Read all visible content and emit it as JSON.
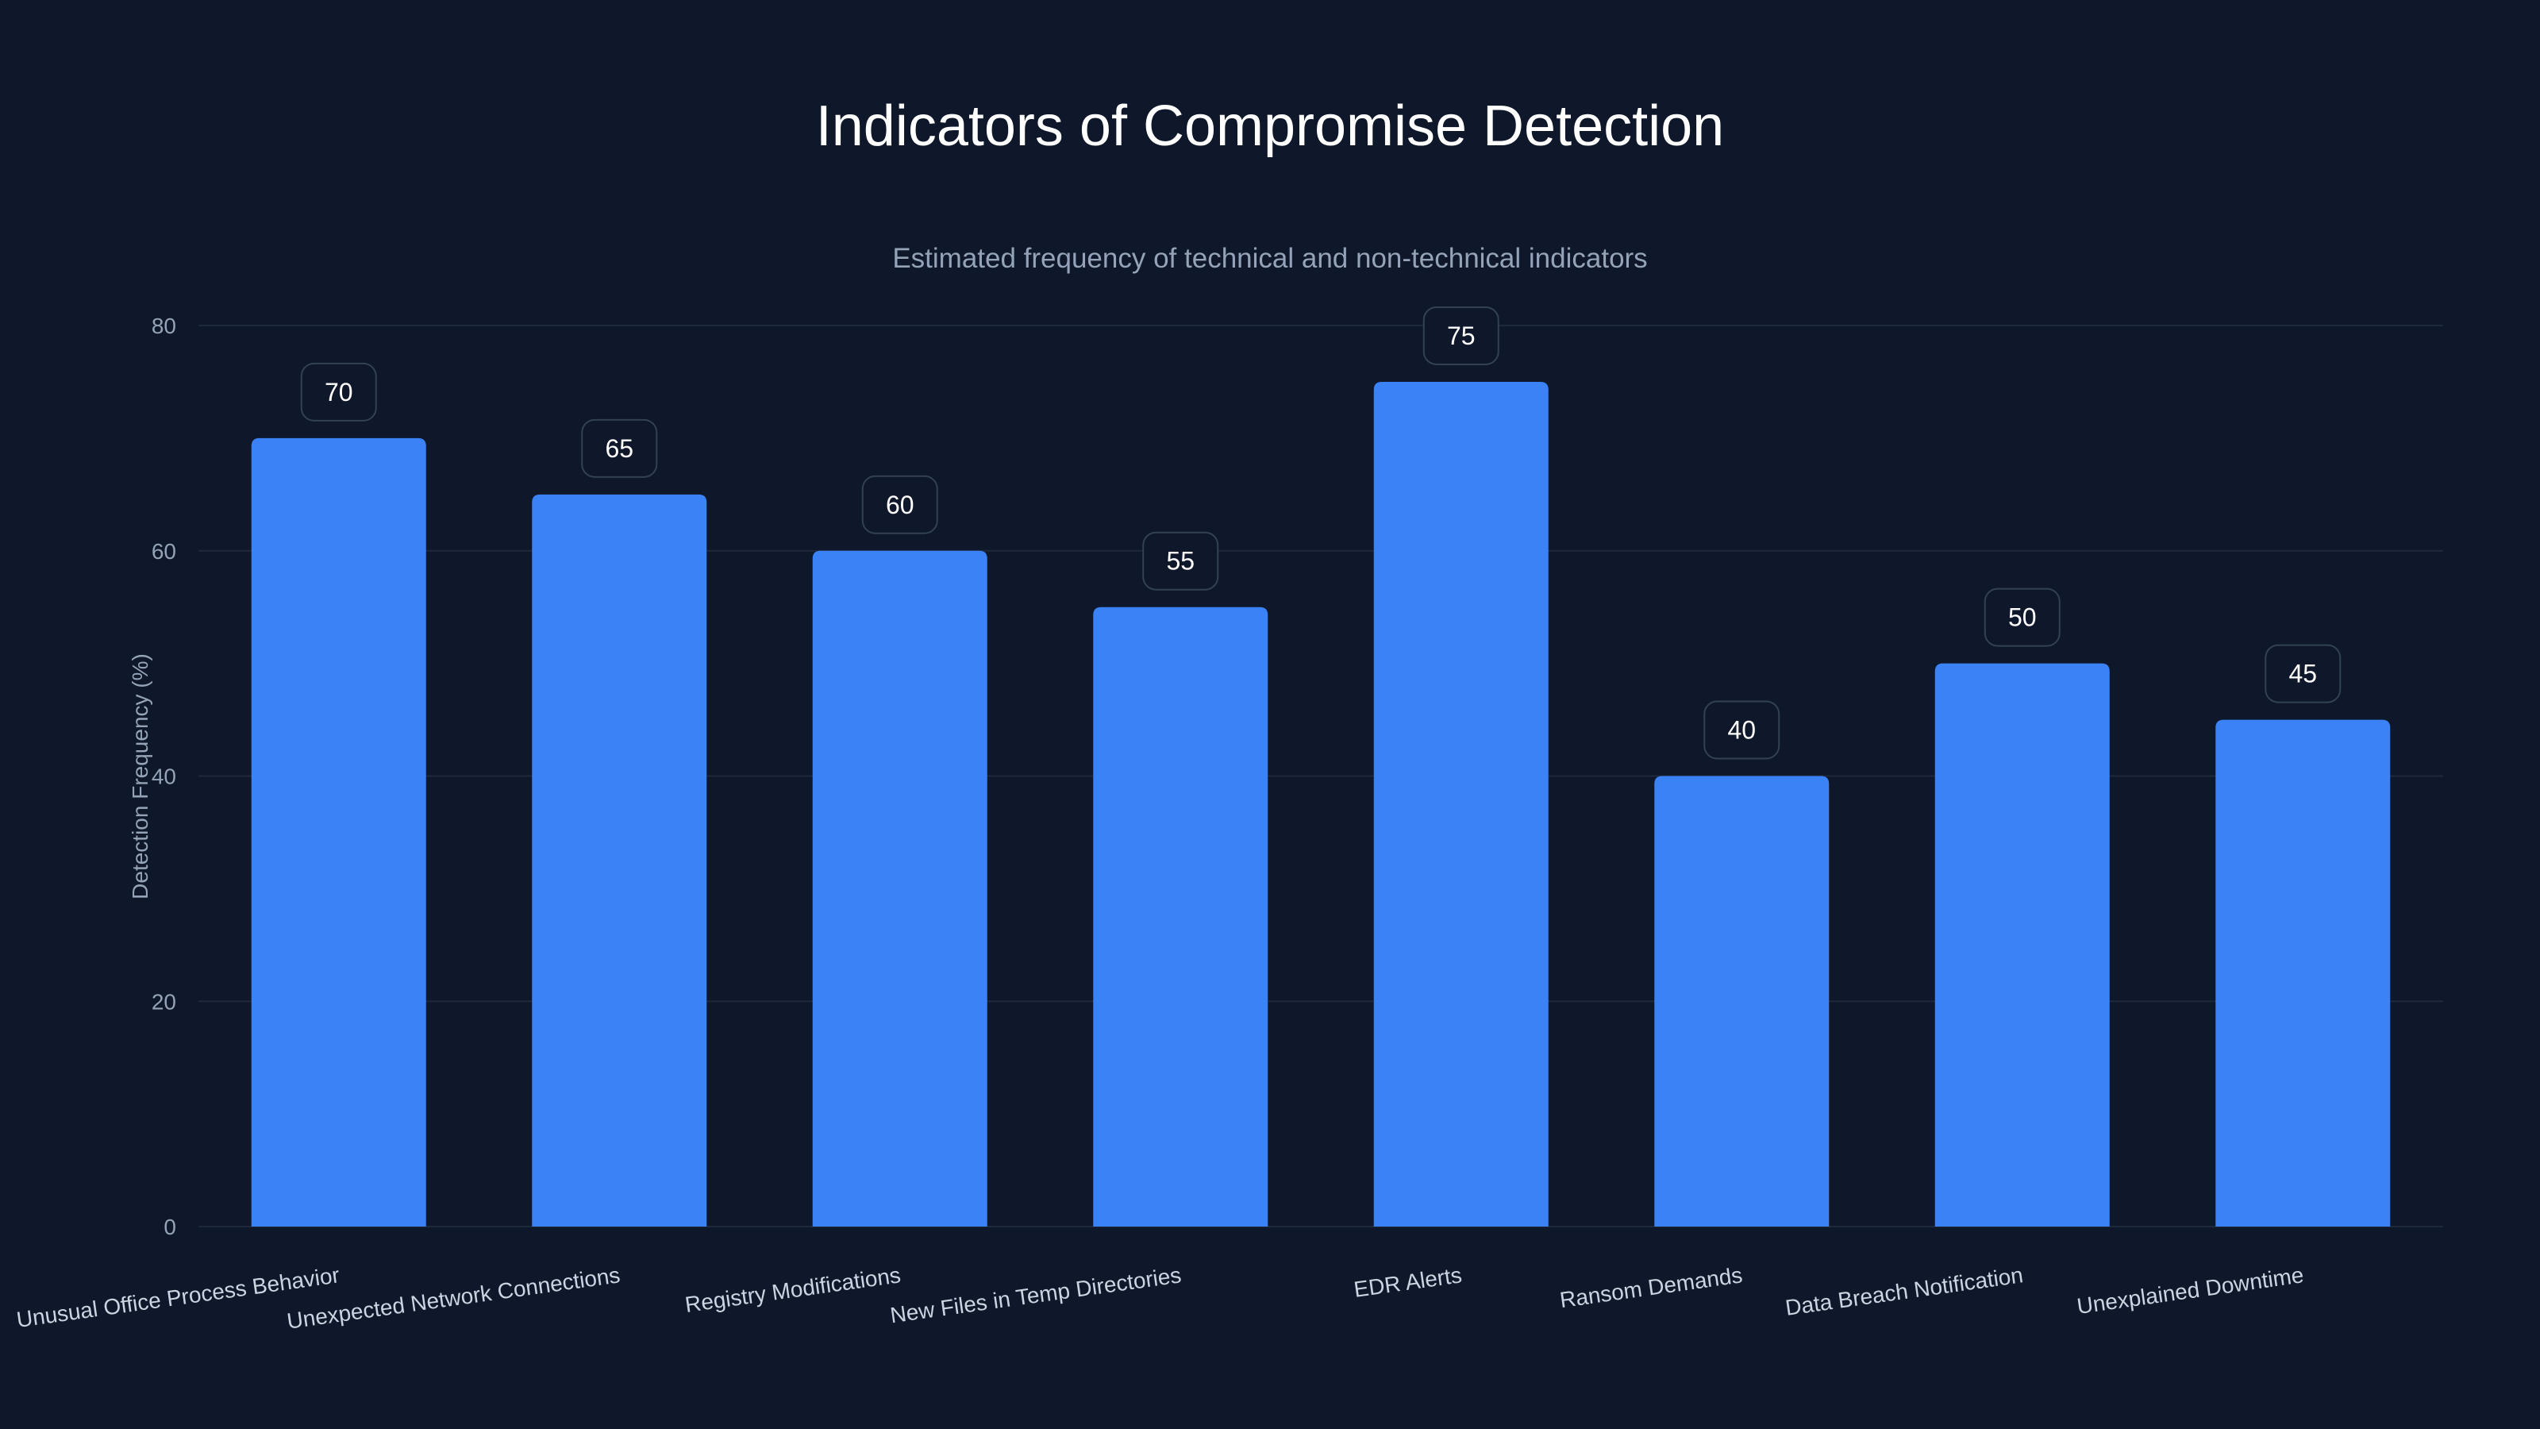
{
  "colors": {
    "background": "#0f172a",
    "bar": "#3b82f6",
    "grid": "#1e293b",
    "tick": "#94a3b8",
    "label_box_border": "#334155",
    "label_box_fill": "#0f172a"
  },
  "chart_data": {
    "type": "bar",
    "title": "Indicators of Compromise Detection",
    "subtitle": "Estimated frequency of technical and non-technical indicators",
    "xlabel": "",
    "ylabel": "Detection Frequency (%)",
    "ylim": [
      0,
      80
    ],
    "yticks": [
      0,
      20,
      40,
      60,
      80
    ],
    "grid": true,
    "categories": [
      "Unusual Office Process Behavior",
      "Unexpected Network Connections",
      "Registry Modifications",
      "New Files in Temp Directories",
      "EDR Alerts",
      "Ransom Demands",
      "Data Breach Notification",
      "Unexplained Downtime"
    ],
    "values": [
      70,
      65,
      60,
      55,
      75,
      40,
      50,
      45
    ]
  }
}
